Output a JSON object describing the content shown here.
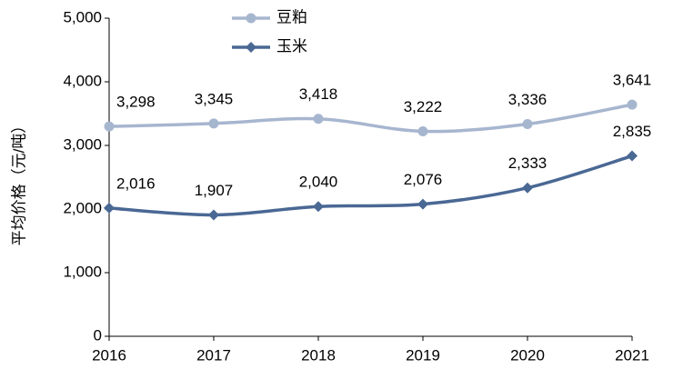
{
  "chart_data": {
    "type": "line",
    "y_label": "平均价格（元/吨）",
    "categories": [
      "2016",
      "2017",
      "2018",
      "2019",
      "2020",
      "2021"
    ],
    "series": [
      {
        "name": "豆粕",
        "color": "#a7b6cf",
        "marker": "circle",
        "values": [
          3298,
          3345,
          3418,
          3222,
          3336,
          3641
        ],
        "value_labels": [
          "3,298",
          "3,345",
          "3,418",
          "3,222",
          "3,336",
          "3,641"
        ]
      },
      {
        "name": "玉米",
        "color": "#4a6894",
        "marker": "diamond",
        "values": [
          2016,
          1907,
          2040,
          2076,
          2333,
          2835
        ],
        "value_labels": [
          "2,016",
          "1,907",
          "2,040",
          "2,076",
          "2,333",
          "2,835"
        ]
      }
    ],
    "ylim": [
      0,
      5000
    ],
    "yticks": [
      0,
      {
        "value": 1000,
        "label": "1,000"
      },
      {
        "value": 2000,
        "label": "2,000"
      },
      {
        "value": 3000,
        "label": "3,000"
      },
      {
        "value": 4000,
        "label": "4,000"
      },
      {
        "value": 5000,
        "label": "5,000"
      }
    ],
    "smooth": true,
    "legend": "top"
  }
}
